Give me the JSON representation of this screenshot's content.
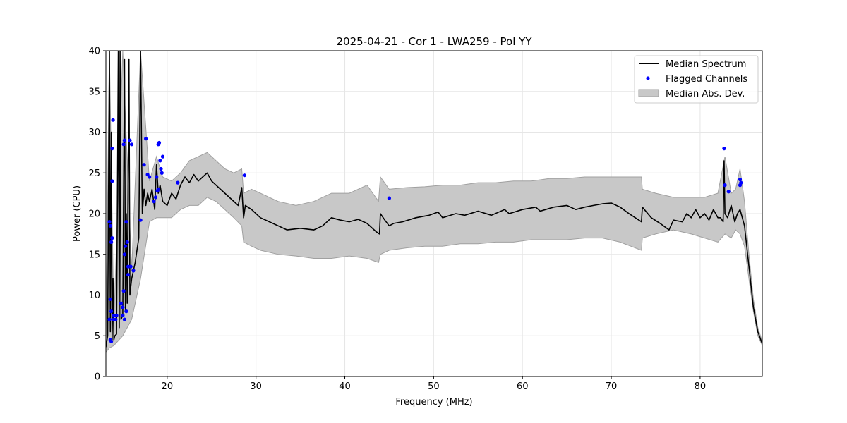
{
  "chart_data": {
    "type": "line",
    "title": "2025-04-21 - Cor 1 - LWA259 - Pol YY",
    "xlabel": "Frequency (MHz)",
    "ylabel": "Power (CPU)",
    "xlim": [
      13.1,
      87.0
    ],
    "ylim": [
      0,
      40
    ],
    "grid": true,
    "legend_position": "top-right",
    "x_ticks": [
      20,
      30,
      40,
      50,
      60,
      70,
      80
    ],
    "y_ticks": [
      0,
      5,
      10,
      15,
      20,
      25,
      30,
      35,
      40
    ],
    "legend": {
      "median": "Median Spectrum",
      "flagged": "Flagged Channels",
      "mad": "Median Abs. Dev."
    },
    "colors": {
      "median": "#000000",
      "flagged": "#0000ff",
      "mad_fill": "#c8c8c8",
      "mad_edge": "#a0a0a0"
    },
    "series": [
      {
        "name": "Median Spectrum",
        "x": [
          13.1,
          13.3,
          13.5,
          13.6,
          13.7,
          13.8,
          13.9,
          14.0,
          14.1,
          14.3,
          14.5,
          14.6,
          14.7,
          14.8,
          15.0,
          15.2,
          15.3,
          15.4,
          15.5,
          15.7,
          15.8,
          15.9,
          16.0,
          16.2,
          16.4,
          16.6,
          16.8,
          17.0,
          17.2,
          17.4,
          17.6,
          17.8,
          18.0,
          18.3,
          18.6,
          18.8,
          19.0,
          19.2,
          19.5,
          20.0,
          20.5,
          21.0,
          21.5,
          22.0,
          22.5,
          23.0,
          23.5,
          24.0,
          24.5,
          25.0,
          25.5,
          26.0,
          27.0,
          28.0,
          28.4,
          28.6,
          28.8,
          29.5,
          30.5,
          31.5,
          32.5,
          33.5,
          35.0,
          36.5,
          37.5,
          38.5,
          39.5,
          40.5,
          41.5,
          42.5,
          43.5,
          43.9,
          44.0,
          44.5,
          45.0,
          45.5,
          46.5,
          48.0,
          49.5,
          50.5,
          51.0,
          52.5,
          53.5,
          55.0,
          56.5,
          58.0,
          58.5,
          60.0,
          61.5,
          62.0,
          63.5,
          65.0,
          66.0,
          67.0,
          68.0,
          69.0,
          70.0,
          71.0,
          72.0,
          73.4,
          73.5,
          74.5,
          75.5,
          76.5,
          77.0,
          78.0,
          78.5,
          79.0,
          79.5,
          80.0,
          80.5,
          81.0,
          81.5,
          82.0,
          82.3,
          82.6,
          82.7,
          82.8,
          83.1,
          83.5,
          83.9,
          84.2,
          84.5,
          85.0,
          85.5,
          86.0,
          86.5,
          87.0
        ],
        "values": [
          3.6,
          5.0,
          40.0,
          5.5,
          30.0,
          4.5,
          12.0,
          4.5,
          5.0,
          5.2,
          40.0,
          6.0,
          40.0,
          7.0,
          7.5,
          39.0,
          8.0,
          20.0,
          9.0,
          39.0,
          10.0,
          11.0,
          12.0,
          13.0,
          14.0,
          15.5,
          17.0,
          40.0,
          20.0,
          23.0,
          21.0,
          22.5,
          21.5,
          23.0,
          20.5,
          26.0,
          22.5,
          23.5,
          21.5,
          21.0,
          22.5,
          21.8,
          23.5,
          24.5,
          23.8,
          24.8,
          24.0,
          24.5,
          25.0,
          24.0,
          23.5,
          23.0,
          22.0,
          21.0,
          23.2,
          19.5,
          21.0,
          20.5,
          19.5,
          19.0,
          18.5,
          18.0,
          18.2,
          18.0,
          18.5,
          19.5,
          19.2,
          19.0,
          19.3,
          18.8,
          17.8,
          17.5,
          20.0,
          19.2,
          18.5,
          18.8,
          19.0,
          19.5,
          19.8,
          20.2,
          19.5,
          20.0,
          19.8,
          20.3,
          19.8,
          20.5,
          20.0,
          20.5,
          20.8,
          20.3,
          20.8,
          21.0,
          20.5,
          20.8,
          21.0,
          21.2,
          21.3,
          20.8,
          20.0,
          19.0,
          20.8,
          19.5,
          18.8,
          18.0,
          19.2,
          19.0,
          20.0,
          19.5,
          20.5,
          19.5,
          20.0,
          19.2,
          20.5,
          19.5,
          19.5,
          19.0,
          26.5,
          20.0,
          19.5,
          21.0,
          19.0,
          20.0,
          20.5,
          18.5,
          13.5,
          8.5,
          5.5,
          4.0
        ]
      },
      {
        "name": "Median Abs. Dev.",
        "x": [
          13.1,
          13.5,
          14.0,
          15.0,
          16.0,
          17.0,
          18.0,
          18.8,
          19.5,
          20.5,
          21.5,
          22.5,
          23.5,
          24.5,
          25.5,
          26.5,
          27.5,
          28.4,
          28.6,
          29.5,
          30.5,
          32.5,
          34.5,
          36.5,
          38.5,
          40.5,
          42.5,
          43.8,
          44.0,
          45.0,
          47.0,
          49.0,
          51.0,
          53.0,
          55.0,
          57.0,
          59.0,
          61.0,
          63.0,
          65.0,
          67.0,
          69.0,
          71.0,
          73.4,
          73.5,
          75.0,
          77.0,
          79.0,
          80.5,
          82.0,
          82.8,
          83.5,
          84.0,
          84.5,
          85.0,
          85.5,
          86.0,
          86.5,
          87.0
        ],
        "upper": [
          4.5,
          40.0,
          6.5,
          40.0,
          13.0,
          40.0,
          24.0,
          27.0,
          24.5,
          24.0,
          25.0,
          26.5,
          27.0,
          27.5,
          26.5,
          25.5,
          25.0,
          25.5,
          22.5,
          23.0,
          22.5,
          21.5,
          21.0,
          21.5,
          22.5,
          22.5,
          23.5,
          21.5,
          24.5,
          23.0,
          23.2,
          23.3,
          23.5,
          23.5,
          23.8,
          23.8,
          24.0,
          24.0,
          24.3,
          24.3,
          24.5,
          24.5,
          24.5,
          24.5,
          23.0,
          22.5,
          22.0,
          22.0,
          22.0,
          22.5,
          27.0,
          22.5,
          23.0,
          25.5,
          21.5,
          15.0,
          9.5,
          6.0,
          4.3
        ],
        "lower": [
          3.0,
          3.5,
          3.8,
          5.0,
          7.0,
          12.0,
          19.0,
          19.5,
          19.5,
          19.5,
          20.5,
          21.0,
          21.0,
          22.0,
          21.5,
          20.5,
          19.5,
          18.5,
          16.5,
          16.0,
          15.5,
          15.0,
          14.8,
          14.5,
          14.5,
          14.8,
          14.5,
          14.0,
          15.0,
          15.5,
          15.8,
          16.0,
          16.0,
          16.3,
          16.3,
          16.5,
          16.5,
          16.8,
          16.8,
          16.8,
          17.0,
          17.0,
          16.5,
          15.5,
          17.0,
          17.5,
          18.0,
          17.5,
          17.0,
          16.5,
          17.5,
          17.0,
          18.0,
          17.5,
          16.0,
          12.0,
          8.0,
          5.0,
          3.8
        ]
      }
    ],
    "flagged_channels": {
      "name": "Flagged Channels",
      "x": [
        13.5,
        13.6,
        13.7,
        13.8,
        13.9,
        13.5,
        13.6,
        13.7,
        13.8,
        13.9,
        13.6,
        13.7,
        13.8,
        14.0,
        14.2,
        14.3,
        14.8,
        15.0,
        15.1,
        15.2,
        15.3,
        15.4,
        15.5,
        15.6,
        15.0,
        15.2,
        15.4,
        15.6,
        15.8,
        15.9,
        16.0,
        16.2,
        15.1,
        15.2,
        17.0,
        17.4,
        17.6,
        17.8,
        18.0,
        18.5,
        18.7,
        18.8,
        19.0,
        19.1,
        19.2,
        19.3,
        19.4,
        19.5,
        18.9,
        19.0,
        21.2,
        28.7,
        45.0,
        82.7,
        82.8,
        83.2,
        84.5,
        84.5,
        84.6
      ],
      "values": [
        7.0,
        9.5,
        16.5,
        24.0,
        31.5,
        19.0,
        18.5,
        8.0,
        28.0,
        7.0,
        4.5,
        4.3,
        17.0,
        7.5,
        7.0,
        7.5,
        9.0,
        8.5,
        10.5,
        15.0,
        16.0,
        19.0,
        16.5,
        13.5,
        7.5,
        7.0,
        8.0,
        12.5,
        29.0,
        13.5,
        28.5,
        13.0,
        28.5,
        29.0,
        19.2,
        26.0,
        29.2,
        24.8,
        24.5,
        21.5,
        22.0,
        24.5,
        28.5,
        28.7,
        26.5,
        25.5,
        25.0,
        27.0,
        22.8,
        23.0,
        23.8,
        24.7,
        21.9,
        28.0,
        23.5,
        22.7,
        24.2,
        23.5,
        23.8
      ]
    }
  }
}
